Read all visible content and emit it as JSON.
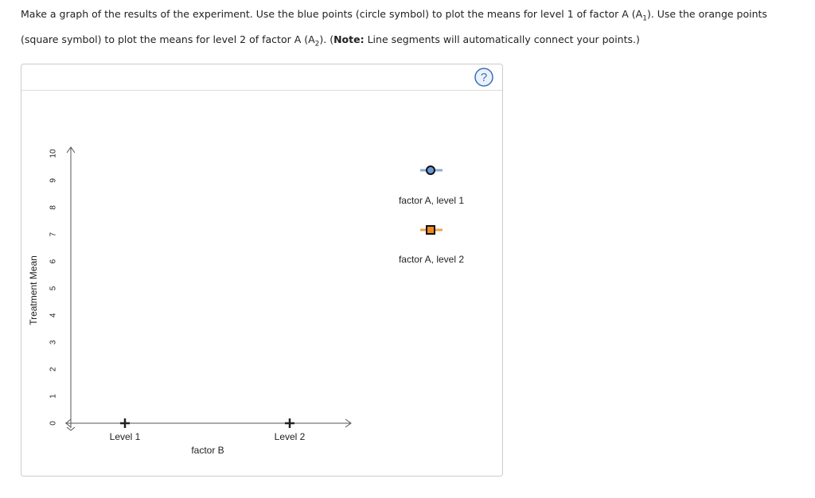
{
  "instructions": [
    "Make a graph of the results of the experiment. Use the blue points (circle symbol) to plot the means for level 1 of factor A (A",
    "1",
    "). Use the orange points (square symbol) to plot the means for level 2 of factor A (A",
    "2",
    "). (",
    "Note:",
    " Line segments will automatically connect your points.)"
  ],
  "graph": {
    "y_axis_label": "Treatment Mean",
    "x_axis_label": "factor B",
    "yticks": [
      0,
      1,
      2,
      3,
      4,
      5,
      6,
      7,
      8,
      9,
      10
    ],
    "categories": [
      "Level 1",
      "Level 2"
    ],
    "legend": [
      "factor A, level 1",
      "factor A, level 2"
    ],
    "help": "?"
  }
}
